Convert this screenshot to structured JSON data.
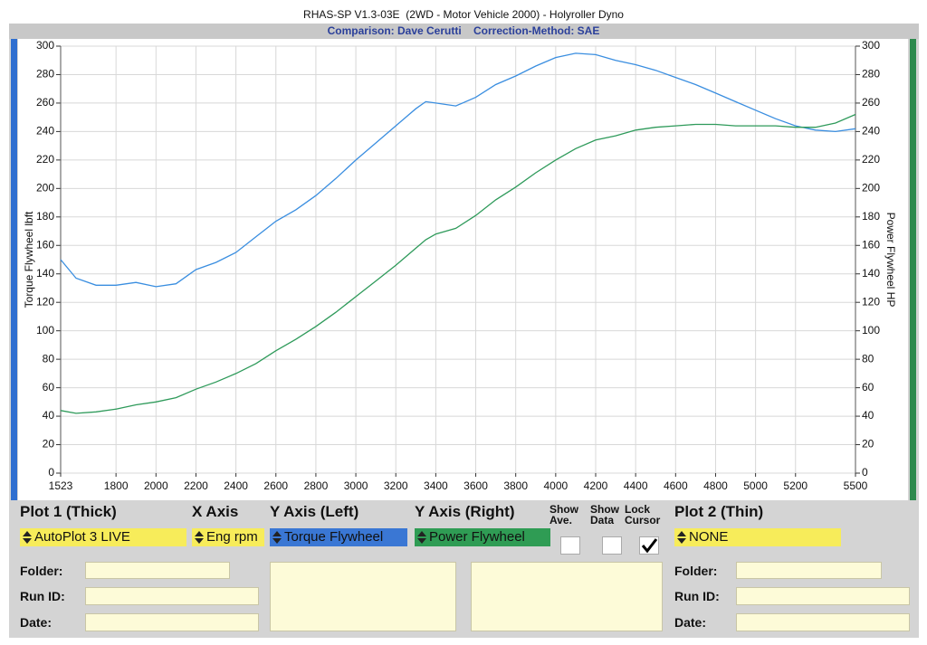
{
  "chart_data": {
    "type": "line",
    "title": "RHAS-SP V1.3-03E  (2WD - Motor Vehicle 2000) - Holyroller Dyno",
    "subtitle": "Comparison: Dave Cerutti    Correction-Method: SAE",
    "ylabel": "Torque Flywheel lbft",
    "y2label": "Power Flywheel HP",
    "x": [
      1523,
      1600,
      1700,
      1800,
      1900,
      2000,
      2100,
      2200,
      2300,
      2400,
      2500,
      2600,
      2700,
      2800,
      2900,
      3000,
      3100,
      3200,
      3300,
      3350,
      3400,
      3500,
      3600,
      3700,
      3800,
      3900,
      4000,
      4100,
      4200,
      4300,
      4400,
      4500,
      4600,
      4700,
      4800,
      4900,
      5000,
      5100,
      5200,
      5300,
      5400,
      5500
    ],
    "series": [
      {
        "name": "Torque Flywheel",
        "color": "#3a8ee0",
        "values": [
          150,
          137,
          132,
          132,
          134,
          131,
          133,
          143,
          148,
          155,
          166,
          177,
          185,
          195,
          207,
          220,
          232,
          244,
          256,
          261,
          260,
          258,
          264,
          273,
          279,
          286,
          292,
          295,
          294,
          290,
          287,
          283,
          278,
          273,
          267,
          261,
          255,
          249,
          244,
          241,
          240,
          242
        ]
      },
      {
        "name": "Power Flywheel",
        "color": "#2e9a5a",
        "axis": "y2",
        "values": [
          44,
          42,
          43,
          45,
          48,
          50,
          53,
          59,
          64,
          70,
          77,
          86,
          94,
          103,
          113,
          124,
          135,
          146,
          158,
          164,
          168,
          172,
          181,
          192,
          201,
          211,
          220,
          228,
          234,
          237,
          241,
          243,
          244,
          245,
          245,
          244,
          244,
          244,
          243,
          243,
          246,
          252
        ]
      }
    ],
    "xlim": [
      1523,
      5500
    ],
    "xticks": [
      1523,
      1800,
      2000,
      2200,
      2400,
      2600,
      2800,
      3000,
      3200,
      3400,
      3600,
      3800,
      4000,
      4200,
      4400,
      4600,
      4800,
      5000,
      5200,
      5500
    ],
    "ylim": [
      0,
      300
    ],
    "yticks": [
      0,
      20,
      40,
      60,
      80,
      100,
      120,
      140,
      160,
      180,
      200,
      220,
      240,
      260,
      280,
      300
    ],
    "y2lim": [
      0,
      300
    ],
    "y2ticks": [
      0,
      20,
      40,
      60,
      80,
      100,
      120,
      140,
      160,
      180,
      200,
      220,
      240,
      260,
      280,
      300
    ],
    "grid": true
  },
  "controls": {
    "plot1": {
      "label": "Plot 1 (Thick)",
      "value": "AutoPlot 3 LIVE"
    },
    "x_axis": {
      "label": "X Axis",
      "value": "Eng rpm"
    },
    "y_left": {
      "label": "Y Axis (Left)",
      "value": "Torque Flywheel"
    },
    "y_right": {
      "label": "Y Axis (Right)",
      "value": "Power Flywheel"
    },
    "show_ave": "Show Ave.",
    "show_data": "Show Data",
    "lock_cursor": "Lock Cursor",
    "plot2": {
      "label": "Plot 2 (Thin)",
      "value": "NONE"
    },
    "left_fields": [
      "Folder:",
      "Run ID:",
      "Date:"
    ],
    "right_fields": [
      "Folder:",
      "Run ID:",
      "Date:"
    ]
  }
}
